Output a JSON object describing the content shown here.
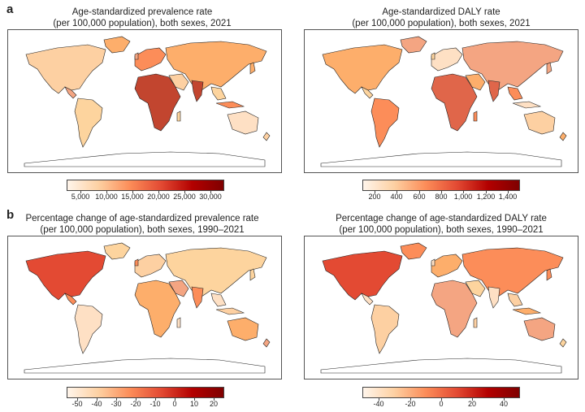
{
  "panel_labels": {
    "a": "a",
    "b": "b"
  },
  "maps": [
    {
      "id": "prevalence-2021",
      "title": "Age-standardized prevalence rate\n(per 100,000 population), both sexes, 2021",
      "colorbar": {
        "colors": [
          "#fff5eb",
          "#fdd0a2",
          "#fc8d59",
          "#e34a33",
          "#b30000",
          "#7f0000"
        ],
        "ticks": [
          "5,000",
          "10,000",
          "15,000",
          "20,000",
          "25,000",
          "30,000"
        ]
      }
    },
    {
      "id": "daly-2021",
      "title": "Age-standardized DALY rate\n(per 100,000 population), both sexes, 2021",
      "colorbar": {
        "colors": [
          "#fff5eb",
          "#fdd0a2",
          "#fc8d59",
          "#e34a33",
          "#b30000",
          "#7f0000"
        ],
        "ticks": [
          "200",
          "400",
          "600",
          "800",
          "1,000",
          "1,200",
          "1,400"
        ]
      }
    },
    {
      "id": "prevalence-change",
      "title": "Percentage change of age-standardized prevalence rate\n(per 100,000 population), both sexes, 1990–2021",
      "colorbar": {
        "colors": [
          "#fff5eb",
          "#fdd0a2",
          "#fc8d59",
          "#e34a33",
          "#b30000",
          "#7f0000"
        ],
        "ticks": [
          "-50",
          "-40",
          "-30",
          "-20",
          "-10",
          "0",
          "10",
          "20"
        ]
      }
    },
    {
      "id": "daly-change",
      "title": "Percentage change of age-standardized DALY rate\n(per 100,000 population), both sexes, 1990–2021",
      "colorbar": {
        "colors": [
          "#fff5eb",
          "#fdd0a2",
          "#fc8d59",
          "#e34a33",
          "#b30000",
          "#7f0000"
        ],
        "ticks": [
          "-40",
          "-20",
          "0",
          "20",
          "40"
        ]
      }
    }
  ]
}
